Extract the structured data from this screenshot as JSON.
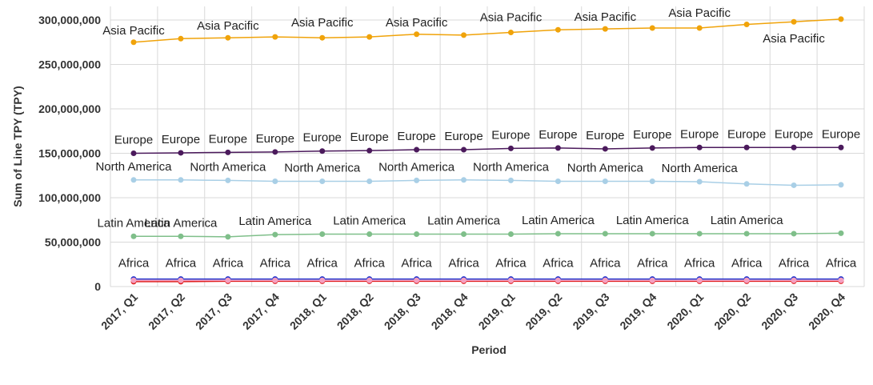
{
  "chart_data": {
    "type": "line",
    "xlabel": "Period",
    "ylabel": "Sum of Line TPY (TPY)",
    "ylim": [
      0,
      300000000
    ],
    "yticks": [
      0,
      50000000,
      100000000,
      150000000,
      200000000,
      250000000,
      300000000
    ],
    "ytick_labels": [
      "0",
      "50,000,000",
      "100,000,000",
      "150,000,000",
      "200,000,000",
      "250,000,000",
      "300,000,000"
    ],
    "grid": true,
    "categories": [
      "2017, Q1",
      "2017, Q2",
      "2017, Q3",
      "2017, Q4",
      "2018, Q1",
      "2018, Q2",
      "2018, Q3",
      "2018, Q4",
      "2019, Q1",
      "2019, Q2",
      "2019, Q3",
      "2019, Q4",
      "2020, Q1",
      "2020, Q2",
      "2020, Q3",
      "2020, Q4"
    ],
    "series": [
      {
        "name": "Asia Pacific",
        "color": "#f0a30a",
        "values": [
          275000000,
          279000000,
          280000000,
          281000000,
          280000000,
          281000000,
          284000000,
          283000000,
          286000000,
          289000000,
          290000000,
          291000000,
          291000000,
          295000000,
          298000000,
          301000000
        ],
        "labels": [
          "Asia Pacific",
          "",
          "Asia Pacific",
          "",
          "Asia Pacific",
          "",
          "Asia Pacific",
          "",
          "Asia Pacific",
          "",
          "Asia Pacific",
          "",
          "Asia Pacific",
          "",
          "Asia Pacific",
          ""
        ]
      },
      {
        "name": "Europe",
        "color": "#4b1a5c",
        "values": [
          150000000,
          150500000,
          151000000,
          151500000,
          152500000,
          153000000,
          154000000,
          154000000,
          155500000,
          156000000,
          155000000,
          156000000,
          156500000,
          156500000,
          156500000,
          156500000
        ],
        "labels": [
          "Europe",
          "Europe",
          "Europe",
          "Europe",
          "Europe",
          "Europe",
          "Europe",
          "Europe",
          "Europe",
          "Europe",
          "Europe",
          "Europe",
          "Europe",
          "Europe",
          "Europe",
          "Europe"
        ]
      },
      {
        "name": "North America",
        "color": "#a9cfe6",
        "values": [
          120000000,
          120000000,
          119500000,
          118500000,
          118500000,
          118500000,
          119500000,
          120000000,
          119500000,
          118500000,
          118500000,
          118500000,
          118000000,
          115500000,
          114000000,
          114500000
        ],
        "labels": [
          "North America",
          "",
          "North America",
          "",
          "North America",
          "",
          "North America",
          "",
          "North America",
          "",
          "North America",
          "",
          "North America",
          "",
          "",
          ""
        ]
      },
      {
        "name": "Latin America",
        "color": "#7fbf8a",
        "values": [
          56500000,
          56500000,
          56000000,
          58500000,
          59000000,
          59000000,
          59000000,
          59000000,
          59000000,
          59500000,
          59500000,
          59500000,
          59500000,
          59500000,
          59500000,
          60000000
        ],
        "labels": [
          "Latin America",
          "Latin America",
          "",
          "Latin America",
          "",
          "Latin America",
          "",
          "Latin America",
          "",
          "Latin America",
          "",
          "Latin America",
          "",
          "Latin America",
          "",
          ""
        ]
      },
      {
        "name": "Africa",
        "color": "#2233cc",
        "values": [
          8500000,
          8500000,
          8500000,
          8500000,
          8500000,
          8500000,
          8500000,
          8500000,
          8500000,
          8500000,
          8500000,
          8500000,
          8500000,
          8500000,
          8500000,
          8500000
        ],
        "labels": [
          "Africa",
          "Africa",
          "Africa",
          "Africa",
          "Africa",
          "Africa",
          "Africa",
          "Africa",
          "Africa",
          "Africa",
          "Africa",
          "Africa",
          "Africa",
          "Africa",
          "Africa",
          "Africa"
        ]
      },
      {
        "name": "",
        "color": "#e02020",
        "values": [
          5500000,
          5500000,
          6000000,
          6000000,
          6000000,
          6000000,
          6000000,
          6000000,
          6000000,
          6000000,
          6000000,
          6000000,
          6000000,
          6000000,
          6000000,
          6000000
        ],
        "labels": []
      },
      {
        "name": "",
        "color": "#f4a0c0",
        "values": [
          7000000,
          7000000,
          7000000,
          7000000,
          7000000,
          7000000,
          7000000,
          7000000,
          7000000,
          7000000,
          7000000,
          7000000,
          7000000,
          7000000,
          7000000,
          7000000
        ],
        "labels": []
      }
    ]
  }
}
